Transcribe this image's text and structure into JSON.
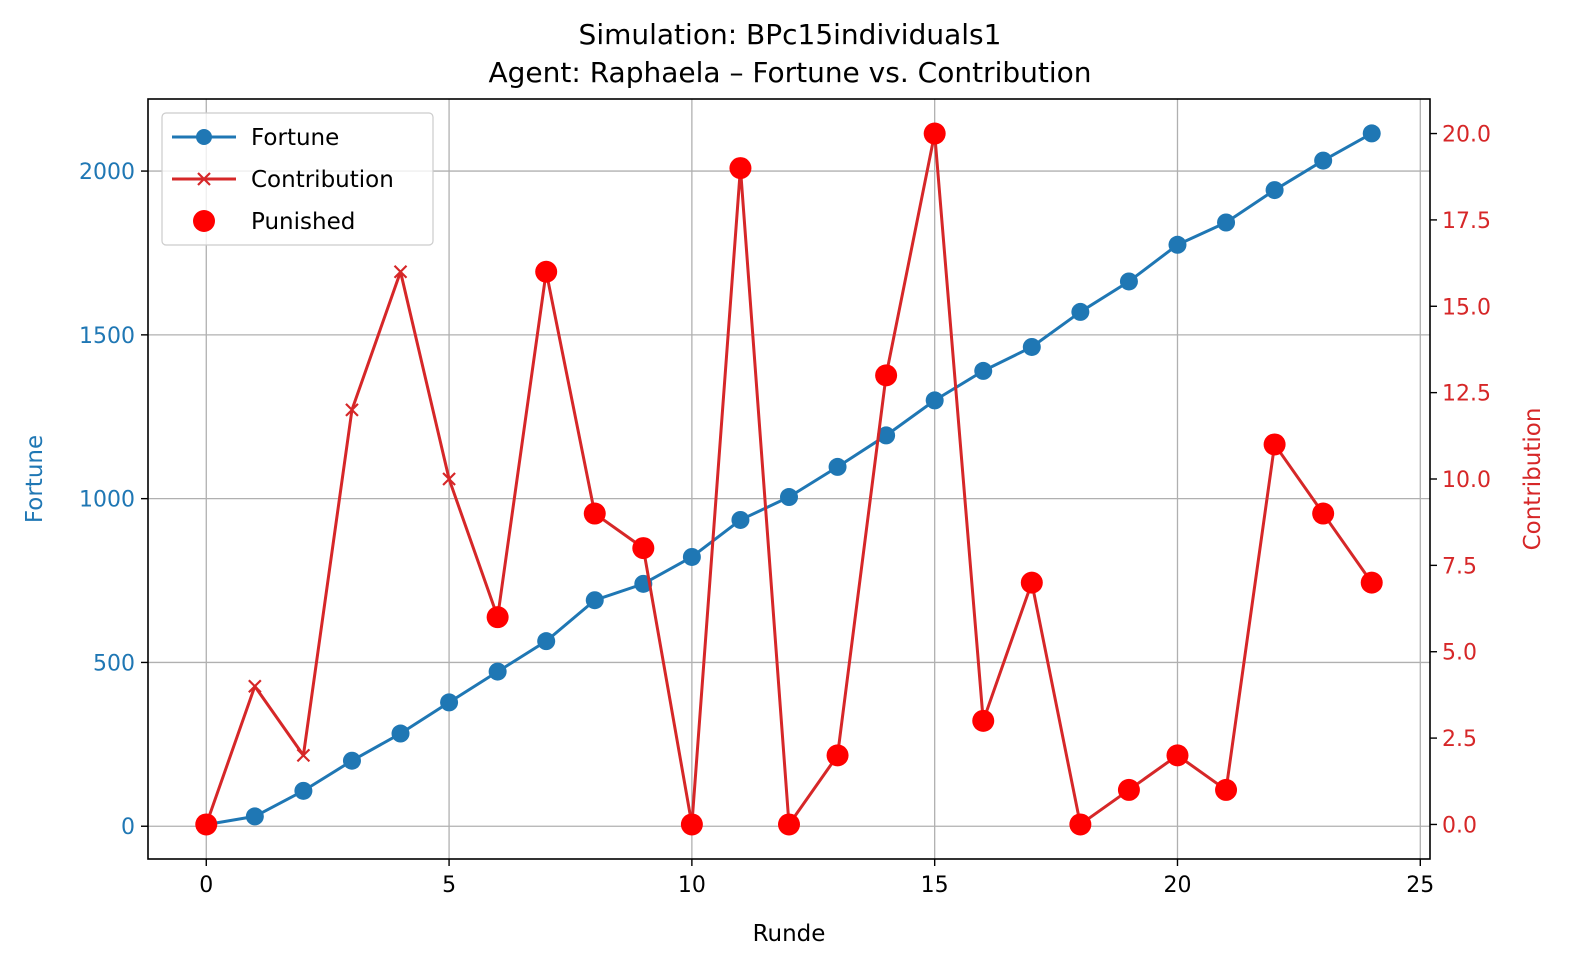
{
  "chart_data": {
    "type": "line",
    "title": "Simulation: BPc15individuals1",
    "subtitle": "Agent: Raphaela – Fortune vs. Contribution",
    "xlabel": "Runde",
    "ylabel_left": "Fortune",
    "ylabel_right": "Contribution",
    "xlim": [
      -1.2,
      25.2
    ],
    "ylim_left": [
      -100,
      2220
    ],
    "ylim_right": [
      -1.0,
      21.0
    ],
    "xticks": [
      0,
      5,
      10,
      15,
      20,
      25
    ],
    "yticks_left": [
      0,
      500,
      1000,
      1500,
      2000
    ],
    "yticks_right": [
      "0.0",
      "2.5",
      "5.0",
      "7.5",
      "10.0",
      "12.5",
      "15.0",
      "17.5",
      "20.0"
    ],
    "grid": true,
    "legend_position": "upper-left",
    "x": [
      0,
      1,
      2,
      3,
      4,
      5,
      6,
      7,
      8,
      9,
      10,
      11,
      12,
      13,
      14,
      15,
      16,
      17,
      18,
      19,
      20,
      21,
      22,
      23,
      24
    ],
    "series": [
      {
        "name": "Fortune",
        "axis": "left",
        "marker": "circle",
        "color": "#1f77b4",
        "values": [
          5,
          30,
          108,
          200,
          283,
          378,
          472,
          565,
          690,
          740,
          822,
          935,
          1005,
          1097,
          1193,
          1300,
          1390,
          1463,
          1570,
          1663,
          1775,
          1843,
          1942,
          2032,
          2115
        ]
      },
      {
        "name": "Contribution",
        "axis": "right",
        "marker": "x",
        "color": "#d62728",
        "values": [
          0,
          4,
          2,
          12,
          16,
          10,
          6,
          16,
          9,
          8,
          0,
          19,
          0,
          2,
          13,
          20,
          3,
          7,
          0,
          1,
          2,
          1,
          11,
          9,
          7
        ]
      }
    ],
    "punished": {
      "name": "Punished",
      "axis": "right",
      "color": "#ff0000",
      "x": [
        0,
        6,
        7,
        8,
        9,
        10,
        11,
        12,
        13,
        14,
        15,
        16,
        17,
        18,
        19,
        20,
        21,
        22,
        23,
        24
      ],
      "values": [
        0,
        6,
        16,
        9,
        8,
        0,
        19,
        0,
        2,
        13,
        20,
        3,
        7,
        0,
        1,
        2,
        1,
        11,
        9,
        7
      ]
    },
    "colors": {
      "fortune": "#1f77b4",
      "contribution": "#d62728",
      "punished": "#ff0000",
      "grid": "#b0b0b0"
    }
  }
}
